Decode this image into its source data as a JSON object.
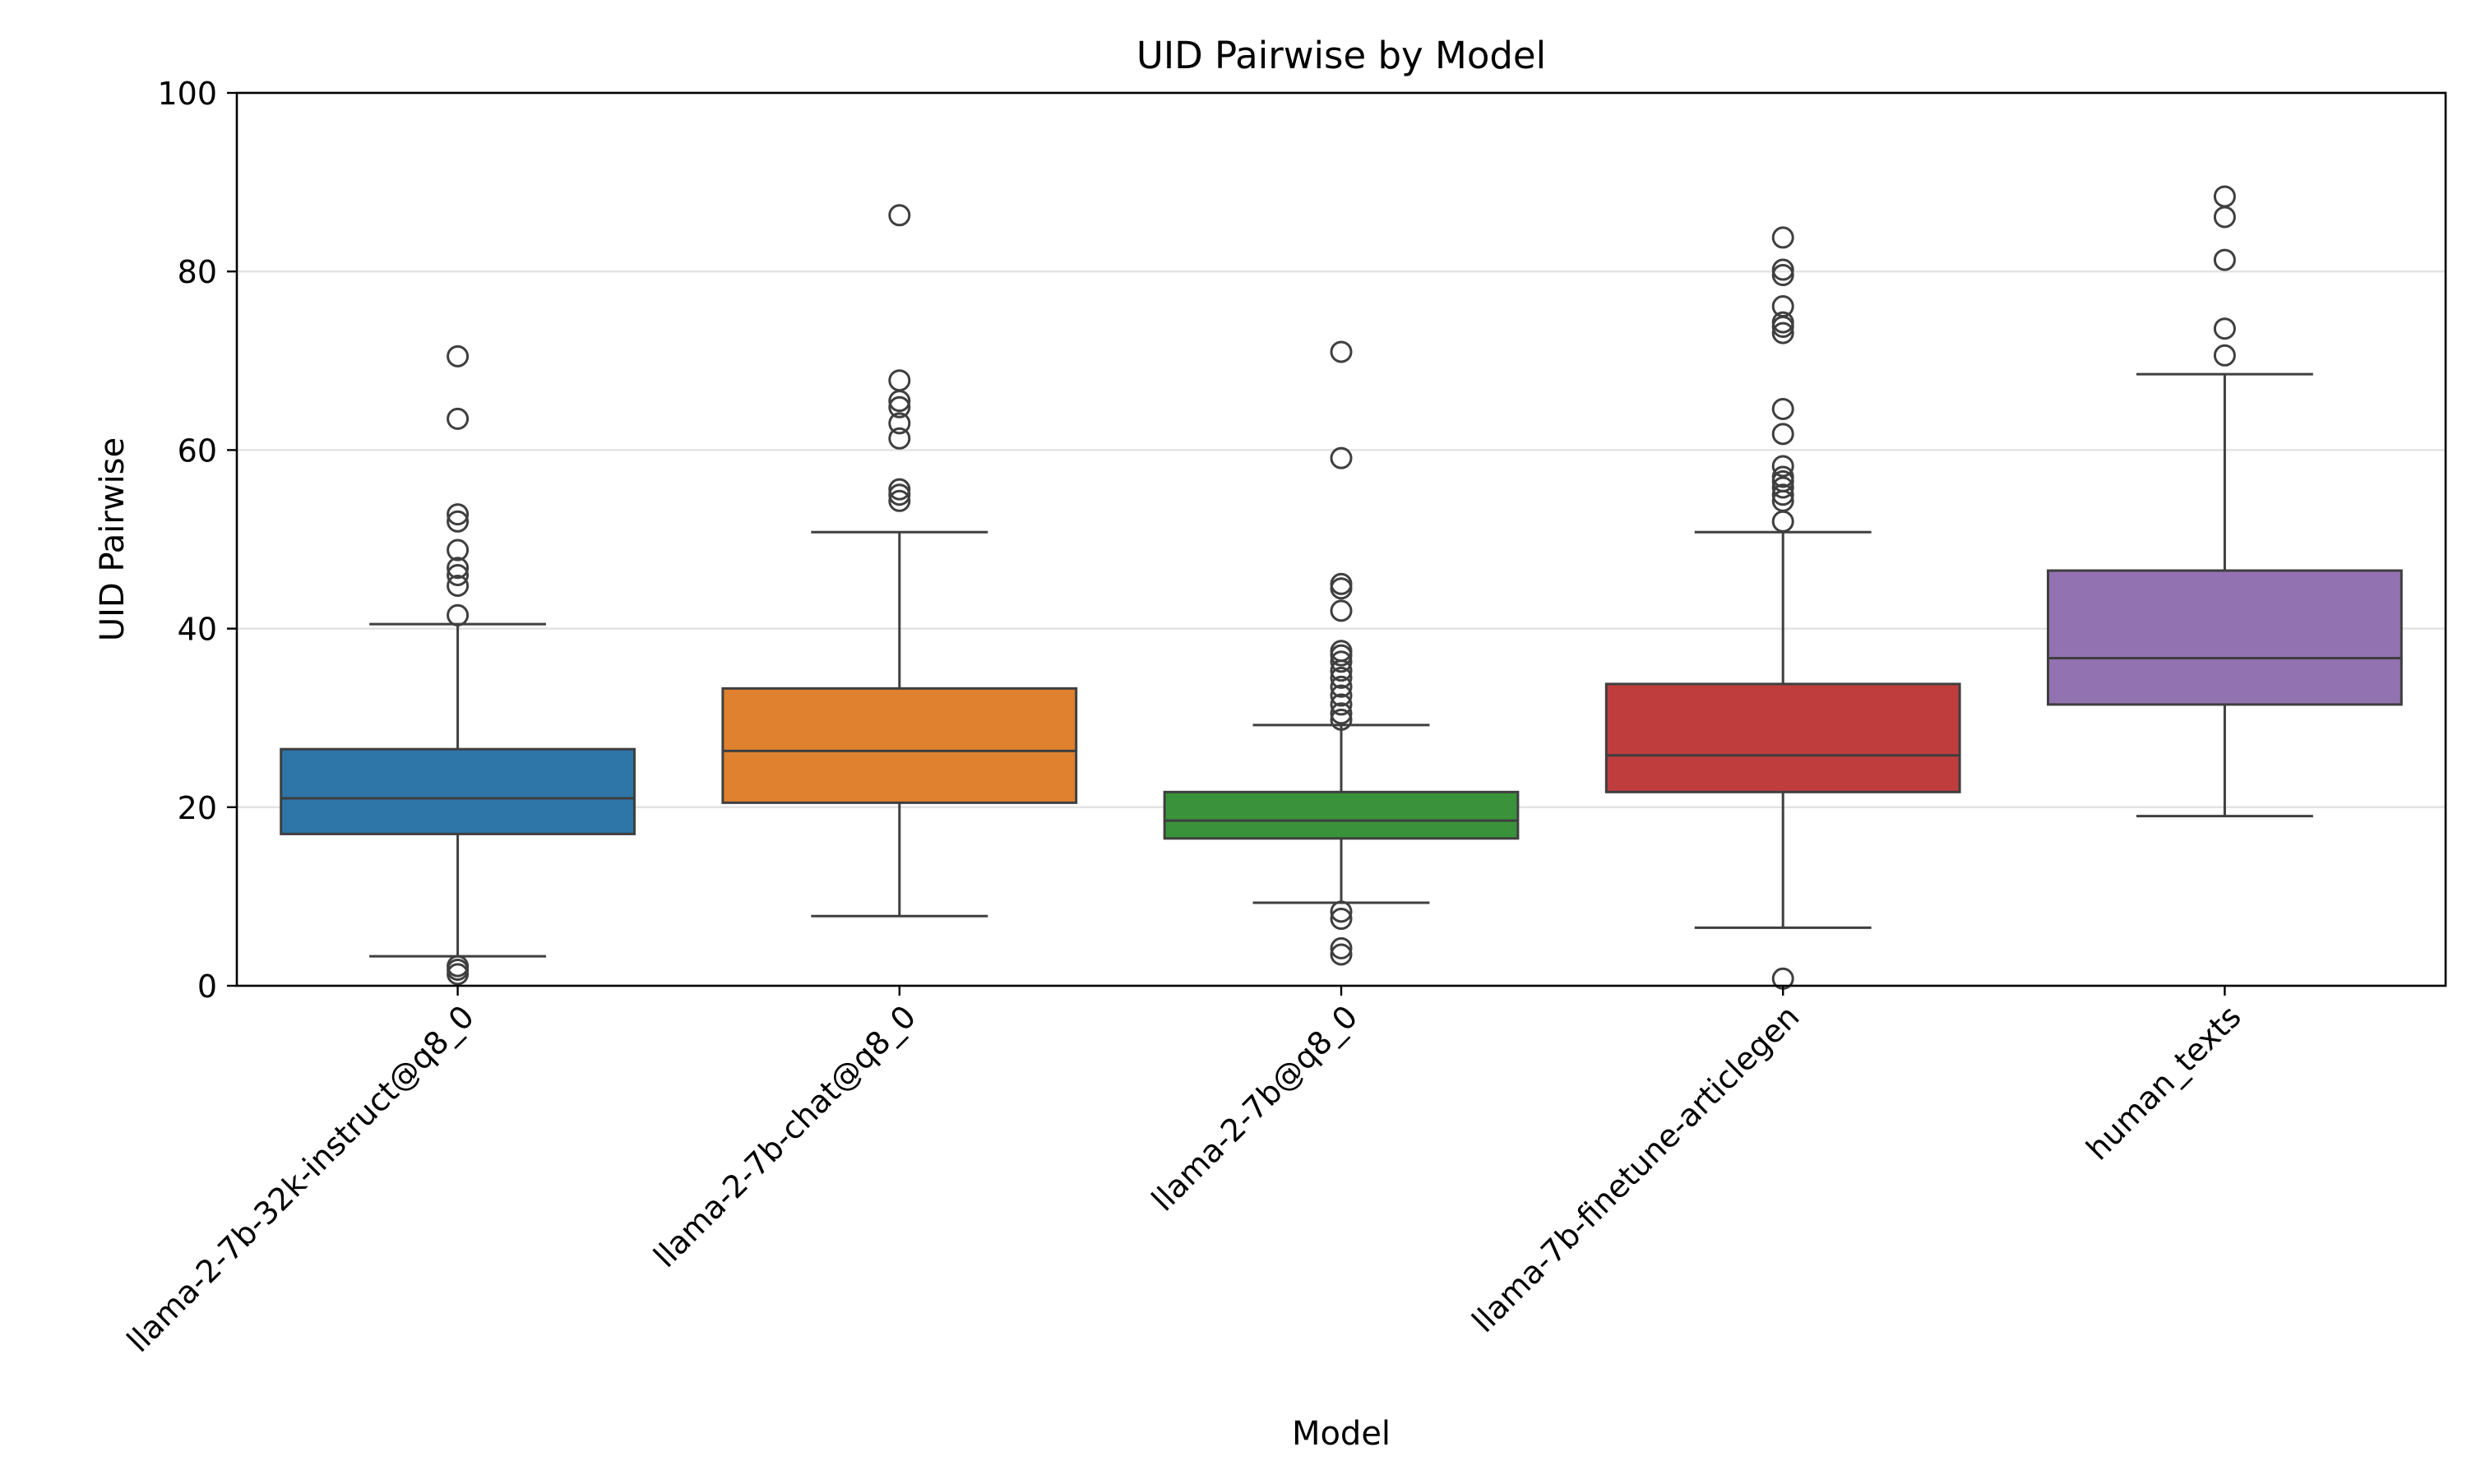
{
  "chart_data": {
    "type": "box",
    "title": "UID Pairwise by Model",
    "xlabel": "Model",
    "ylabel": "UID Pairwise",
    "ylim": [
      0,
      100
    ],
    "yticks": [
      0,
      20,
      40,
      60,
      80,
      100
    ],
    "grid": "horizontal",
    "categories": [
      "llama-2-7b-32k-instruct@q8_0",
      "llama-2-7b-chat@q8_0",
      "llama-2-7b@q8_0",
      "llama-7b-finetune-articlegen",
      "human_texts"
    ],
    "boxes": [
      {
        "category": "llama-2-7b-32k-instruct@q8_0",
        "color": "#2e75a8",
        "whisker_low": 3.3,
        "q1": 17.0,
        "median": 21.0,
        "q3": 26.5,
        "whisker_high": 40.5,
        "outliers": [
          1.3,
          1.8,
          2.2,
          41.5,
          44.8,
          46.0,
          46.8,
          48.8,
          52.0,
          52.8,
          63.5,
          70.5
        ]
      },
      {
        "category": "llama-2-7b-chat@q8_0",
        "color": "#e0812f",
        "whisker_low": 7.8,
        "q1": 20.5,
        "median": 26.3,
        "q3": 33.3,
        "whisker_high": 50.8,
        "outliers": [
          54.3,
          55.0,
          55.6,
          61.3,
          63.0,
          64.8,
          65.5,
          67.8,
          86.3
        ]
      },
      {
        "category": "llama-2-7b@q8_0",
        "color": "#3a923a",
        "whisker_low": 9.3,
        "q1": 16.5,
        "median": 18.5,
        "q3": 21.7,
        "whisker_high": 29.2,
        "outliers": [
          3.5,
          4.2,
          7.5,
          8.3,
          29.8,
          30.5,
          31.5,
          32.5,
          33.5,
          34.5,
          35.3,
          36.3,
          37.0,
          37.5,
          42.0,
          44.5,
          45.0,
          59.1,
          71.0
        ]
      },
      {
        "category": "llama-7b-finetune-articlegen",
        "color": "#c03d3e",
        "whisker_low": 6.5,
        "q1": 21.7,
        "median": 25.8,
        "q3": 33.8,
        "whisker_high": 50.8,
        "outliers": [
          0.8,
          52.0,
          54.3,
          55.0,
          55.8,
          56.5,
          57.0,
          58.2,
          61.8,
          64.6,
          73.1,
          73.8,
          74.3,
          76.1,
          79.6,
          80.2,
          83.8
        ]
      },
      {
        "category": "human_texts",
        "color": "#9372b2",
        "whisker_low": 19.0,
        "q1": 31.5,
        "median": 36.7,
        "q3": 46.5,
        "whisker_high": 68.5,
        "outliers": [
          70.6,
          73.6,
          81.3,
          86.1,
          88.4
        ]
      }
    ]
  }
}
